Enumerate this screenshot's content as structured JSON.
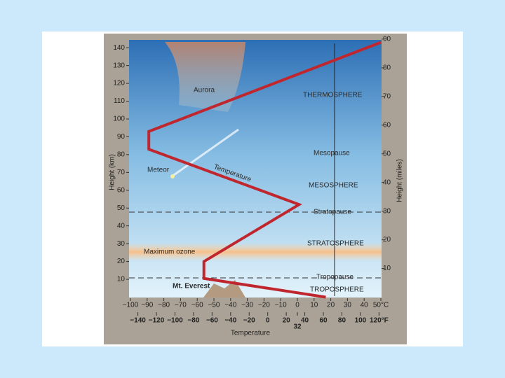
{
  "chart_data": {
    "type": "line",
    "x_label": "Temperature",
    "y_label": "Height (km)",
    "y2_label": "Height (miles)",
    "series": [
      {
        "name": "Temperature",
        "color": "#c0262d",
        "x": [
          17,
          -56,
          -56,
          1,
          -89,
          -89,
          50
        ],
        "values": [
          0,
          10.5,
          20,
          52,
          83,
          93,
          143
        ]
      }
    ],
    "xlim": [
      -100,
      50
    ],
    "xticks": [
      {
        "value": -100,
        "label": "−100"
      },
      {
        "value": -90,
        "label": "−90"
      },
      {
        "value": -80,
        "label": "−80"
      },
      {
        "value": -70,
        "label": "−70"
      },
      {
        "value": -60,
        "label": "−60"
      },
      {
        "value": -50,
        "label": "−50"
      },
      {
        "value": -40,
        "label": "−40"
      },
      {
        "value": -30,
        "label": "−30"
      },
      {
        "value": -20,
        "label": "−20"
      },
      {
        "value": -10,
        "label": "−10"
      },
      0,
      10,
      20,
      30,
      40,
      {
        "value": 50,
        "label": "50°C"
      }
    ],
    "x2lim": [
      -148,
      122
    ],
    "x2ticks": [
      {
        "value": -140,
        "label": "−140"
      },
      {
        "value": -120,
        "label": "−120"
      },
      {
        "value": -100,
        "label": "−100"
      },
      {
        "value": -80,
        "label": "−80"
      },
      {
        "value": -60,
        "label": "−60"
      },
      {
        "value": -40,
        "label": "−40"
      },
      {
        "value": -20,
        "label": "−20"
      },
      0,
      20,
      32,
      40,
      60,
      80,
      100,
      {
        "value": 120,
        "label": "120°F"
      }
    ],
    "ylim": [
      0,
      144
    ],
    "yticks": [
      10,
      20,
      30,
      40,
      50,
      60,
      70,
      80,
      90,
      100,
      110,
      120,
      130,
      140
    ],
    "y2lim": [
      0,
      89.5
    ],
    "y2ticks": [
      10,
      20,
      30,
      40,
      50,
      60,
      70,
      80,
      90
    ],
    "annotations": [
      "Aurora",
      "THERMOSPHERE",
      "Mesopause",
      "Meteor",
      "Temperature",
      "MESOSPHERE",
      "Stratopause",
      "Maximum ozone",
      "STRATOSPHERE",
      "Tropopause",
      "Mt. Everest",
      "TROPOSPHERE"
    ]
  }
}
